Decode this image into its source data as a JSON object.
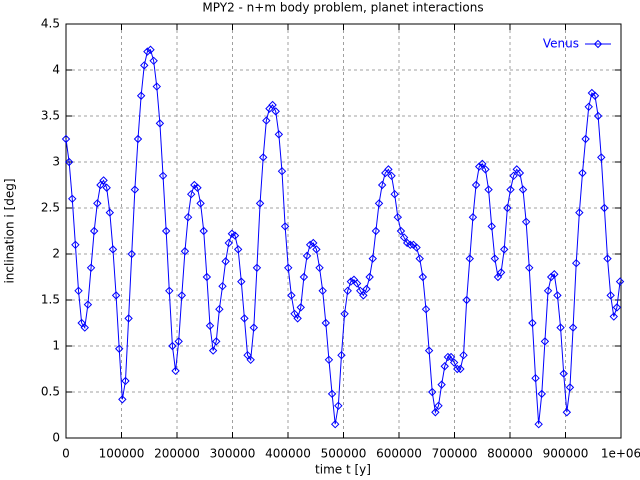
{
  "chart_data": {
    "type": "line",
    "title": "MPY2 - n+m body problem, planet interactions",
    "xlabel": "time t [y]",
    "ylabel": "inclination i [deg]",
    "x": [
      0,
      5640,
      11280,
      16920,
      22560,
      28200,
      33840,
      39480,
      45120,
      50760,
      56400,
      62040,
      67680,
      73320,
      78960,
      84600,
      90240,
      95880,
      101520,
      107160,
      112800,
      118440,
      124080,
      129720,
      135360,
      141000,
      146640,
      152280,
      157920,
      163560,
      169200,
      174840,
      180480,
      186120,
      191760,
      197400,
      203040,
      208680,
      214320,
      219960,
      225600,
      231240,
      236880,
      242520,
      248160,
      253800,
      259440,
      265080,
      270720,
      276360,
      282000,
      287640,
      293280,
      298920,
      304560,
      310200,
      315840,
      321480,
      327120,
      332760,
      338400,
      344040,
      349680,
      355320,
      360960,
      366600,
      372240,
      377880,
      383520,
      389160,
      394800,
      400440,
      406080,
      411720,
      417360,
      423000,
      428640,
      434280,
      439920,
      445560,
      451200,
      456840,
      462480,
      468120,
      473760,
      479400,
      485040,
      490680,
      496320,
      501960,
      507600,
      513240,
      518880,
      524520,
      530160,
      535800,
      541440,
      547080,
      552720,
      558360,
      564000,
      569640,
      575280,
      580920,
      586560,
      592200,
      597840,
      603480,
      609120,
      614760,
      620400,
      626040,
      631680,
      637320,
      642960,
      648600,
      654240,
      659880,
      665520,
      671160,
      676800,
      682440,
      688080,
      693720,
      699360,
      705000,
      710640,
      716280,
      721920,
      727560,
      733200,
      738840,
      744480,
      750120,
      755760,
      761400,
      767040,
      772680,
      778320,
      783960,
      789600,
      795240,
      800880,
      806520,
      812160,
      817800,
      823440,
      829080,
      834720,
      840360,
      846000,
      851640,
      857280,
      862920,
      868560,
      874200,
      879840,
      885480,
      891120,
      896760,
      902400,
      908040,
      913680,
      919320,
      924960,
      930600,
      936240,
      941880,
      947520,
      953160,
      958800,
      964440,
      970080,
      975720,
      981360,
      987000,
      992640,
      998280
    ],
    "series": [
      {
        "name": "Venus",
        "color": "#0000ff",
        "values": [
          3.25,
          3.0,
          2.6,
          2.1,
          1.6,
          1.25,
          1.2,
          1.45,
          1.85,
          2.25,
          2.55,
          2.75,
          2.8,
          2.72,
          2.45,
          2.05,
          1.55,
          0.97,
          0.42,
          0.62,
          1.3,
          2.0,
          2.7,
          3.25,
          3.72,
          4.05,
          4.2,
          4.22,
          4.1,
          3.82,
          3.42,
          2.85,
          2.25,
          1.6,
          1.0,
          0.73,
          1.05,
          1.55,
          2.03,
          2.4,
          2.65,
          2.75,
          2.72,
          2.55,
          2.25,
          1.75,
          1.22,
          0.95,
          1.05,
          1.4,
          1.65,
          1.92,
          2.12,
          2.22,
          2.2,
          2.05,
          1.7,
          1.3,
          0.9,
          0.85,
          1.2,
          1.85,
          2.55,
          3.05,
          3.45,
          3.58,
          3.62,
          3.55,
          3.3,
          2.9,
          2.3,
          1.85,
          1.55,
          1.35,
          1.3,
          1.42,
          1.75,
          1.98,
          2.1,
          2.12,
          2.05,
          1.85,
          1.6,
          1.25,
          0.85,
          0.48,
          0.15,
          0.35,
          0.9,
          1.35,
          1.6,
          1.7,
          1.72,
          1.68,
          1.6,
          1.55,
          1.62,
          1.75,
          1.95,
          2.25,
          2.55,
          2.75,
          2.88,
          2.92,
          2.85,
          2.65,
          2.4,
          2.25,
          2.18,
          2.12,
          2.1,
          2.1,
          2.07,
          1.95,
          1.75,
          1.4,
          0.95,
          0.5,
          0.28,
          0.35,
          0.58,
          0.78,
          0.88,
          0.88,
          0.82,
          0.75,
          0.75,
          0.9,
          1.5,
          1.95,
          2.4,
          2.75,
          2.95,
          2.98,
          2.92,
          2.7,
          2.3,
          1.95,
          1.75,
          1.8,
          2.05,
          2.5,
          2.7,
          2.85,
          2.92,
          2.88,
          2.7,
          2.35,
          1.85,
          1.25,
          0.65,
          0.15,
          0.48,
          1.05,
          1.6,
          1.75,
          1.78,
          1.55,
          1.2,
          0.7,
          0.28,
          0.55,
          1.2,
          1.9,
          2.45,
          2.88,
          3.25,
          3.6,
          3.75,
          3.72,
          3.5,
          3.05,
          2.5,
          1.95,
          1.55,
          1.32,
          1.42,
          1.7
        ]
      }
    ],
    "xlim": [
      0,
      1000000
    ],
    "xticks": [
      0,
      100000,
      200000,
      300000,
      400000,
      500000,
      600000,
      700000,
      800000,
      900000,
      {
        "value": 1000000,
        "label": "1e+06"
      }
    ],
    "ylim": [
      0,
      4.5
    ],
    "yticks": [
      0,
      0.5,
      1,
      1.5,
      2,
      2.5,
      3,
      3.5,
      4,
      4.5
    ],
    "grid": true,
    "legend": "top-right"
  }
}
